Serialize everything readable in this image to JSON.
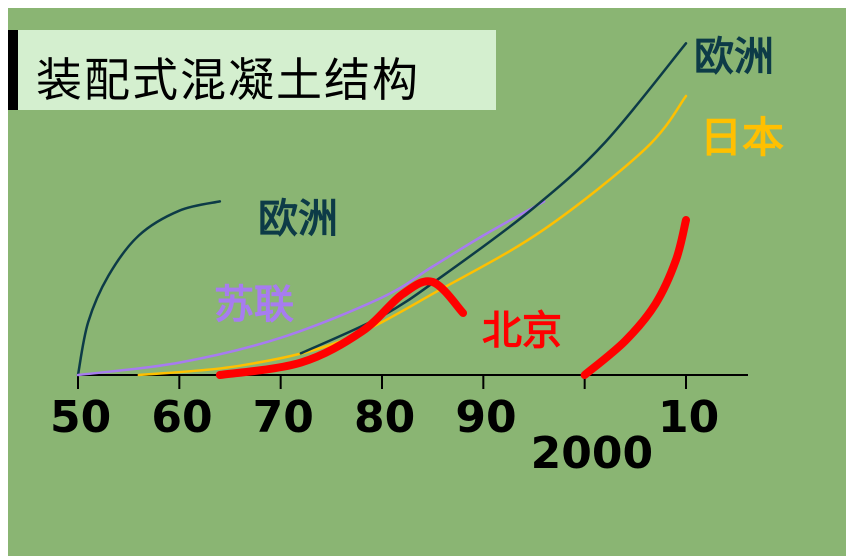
{
  "title": "装配式混凝土结构",
  "colors": {
    "europe": "#0d3b47",
    "japan": "#ffc000",
    "ussr": "#a77cf0",
    "beijing": "#ff0000",
    "background": "#8ab573",
    "title_box": "#d4efcf"
  },
  "chart_data": {
    "type": "line",
    "x_tick_labels": [
      "50",
      "60",
      "70",
      "80",
      "90",
      "2000",
      "10"
    ],
    "x_ticks": [
      1950,
      1960,
      1970,
      1980,
      1990,
      2000,
      2010
    ],
    "xlim": [
      1950,
      2016
    ],
    "ylim": [
      0,
      100
    ],
    "grid": false,
    "legend": "inline labels",
    "series": [
      {
        "name": "欧洲",
        "color": "#0d3b47",
        "points": [
          [
            1950,
            0
          ],
          [
            1951,
            17
          ],
          [
            1953,
            32
          ],
          [
            1956,
            45
          ],
          [
            1960,
            53
          ],
          [
            1964,
            56
          ]
        ]
      },
      {
        "name": "苏联",
        "color": "#a77cf0",
        "points": [
          [
            1950,
            0
          ],
          [
            1960,
            4
          ],
          [
            1970,
            12
          ],
          [
            1980,
            25
          ],
          [
            1985,
            35
          ],
          [
            1990,
            45
          ],
          [
            1996,
            56
          ]
        ]
      },
      {
        "name": "日本",
        "color": "#ffc000",
        "points": [
          [
            1956,
            0
          ],
          [
            1966,
            3
          ],
          [
            1976,
            11
          ],
          [
            1986,
            28
          ],
          [
            1996,
            47
          ],
          [
            2006,
            73
          ],
          [
            2010,
            90
          ]
        ]
      },
      {
        "name": "欧洲",
        "color": "#0d3b47",
        "points": [
          [
            1972,
            7
          ],
          [
            1980,
            19
          ],
          [
            1986,
            32
          ],
          [
            1995,
            54
          ],
          [
            2002,
            75
          ],
          [
            2010,
            107
          ]
        ]
      },
      {
        "name": "北京",
        "color": "#ff0000",
        "points": [
          [
            1964,
            0
          ],
          [
            1972,
            4
          ],
          [
            1978,
            14
          ],
          [
            1982,
            26
          ],
          [
            1985,
            30
          ],
          [
            1988,
            20
          ]
        ]
      },
      {
        "name": "北京",
        "color": "#ff0000",
        "points": [
          [
            2000,
            0
          ],
          [
            2004,
            11
          ],
          [
            2007,
            23
          ],
          [
            2009,
            37
          ],
          [
            2010,
            50
          ]
        ]
      }
    ],
    "labels": {
      "europe_early": "欧洲",
      "ussr": "苏联",
      "beijing": "北京",
      "europe_late": "欧洲",
      "japan": "日本"
    }
  }
}
